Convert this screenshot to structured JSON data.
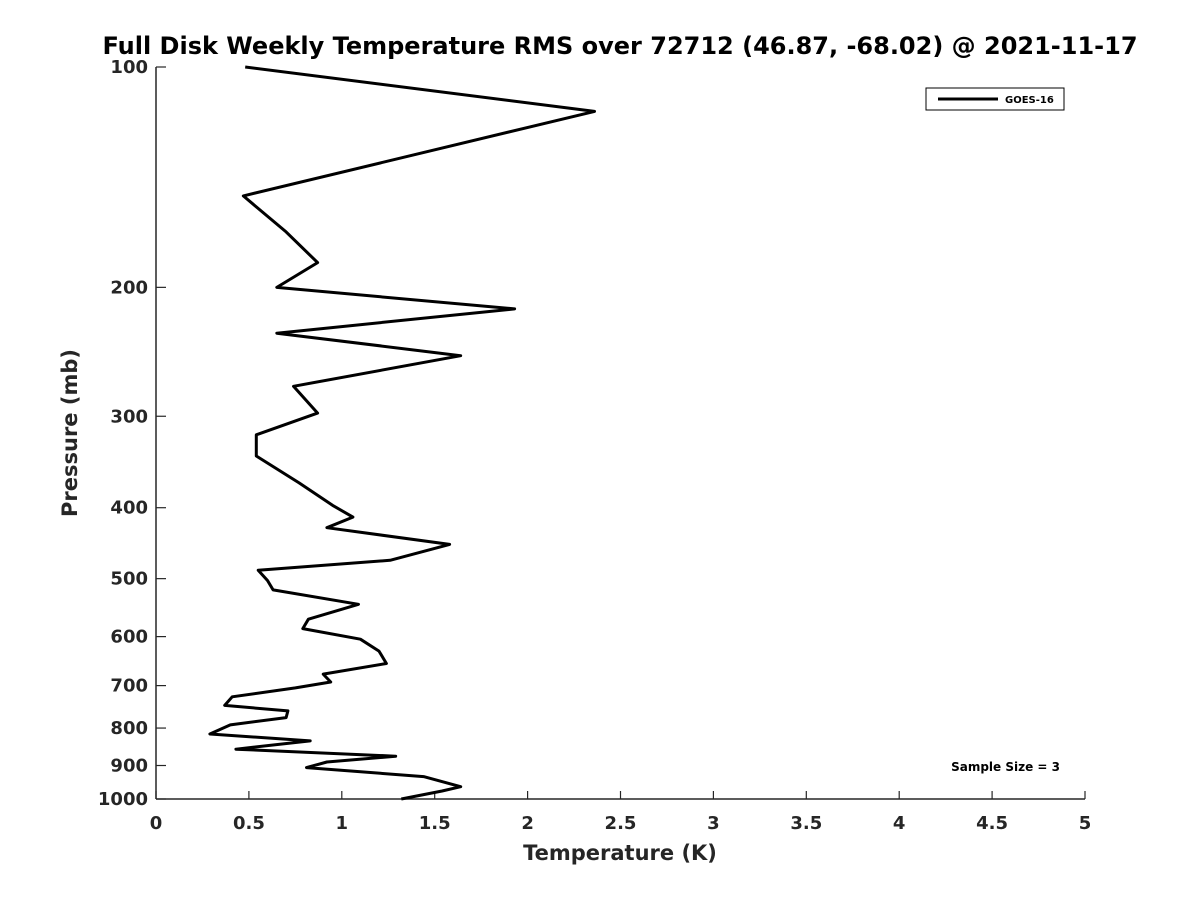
{
  "chart_data": {
    "type": "line",
    "title": "Full Disk Weekly Temperature RMS over 72712 (46.87, -68.02) @ 2021-11-17",
    "xlabel": "Temperature (K)",
    "ylabel": "Pressure (mb)",
    "xlim": [
      0,
      5
    ],
    "ylim": [
      100,
      1000
    ],
    "y_scale": "log",
    "y_reversed": true,
    "x_ticks": [
      "0",
      "0.5",
      "1",
      "1.5",
      "2",
      "2.5",
      "3",
      "3.5",
      "4",
      "4.5",
      "5"
    ],
    "y_ticks": [
      "100",
      "200",
      "300",
      "400",
      "500",
      "600",
      "700",
      "800",
      "900",
      "1000"
    ],
    "grid": false,
    "legend": {
      "position": "top-right",
      "entries": [
        "GOES-16"
      ]
    },
    "annotation": "Sample Size = 3",
    "series": [
      {
        "name": "GOES-16",
        "color": "#000000",
        "points": [
          [
            0.48,
            100
          ],
          [
            2.36,
            115
          ],
          [
            0.47,
            150
          ],
          [
            0.7,
            168
          ],
          [
            0.87,
            185
          ],
          [
            0.65,
            200
          ],
          [
            1.93,
            214
          ],
          [
            0.65,
            231
          ],
          [
            1.64,
            248
          ],
          [
            0.74,
            273
          ],
          [
            0.87,
            297
          ],
          [
            0.54,
            318
          ],
          [
            0.54,
            340
          ],
          [
            0.77,
            370
          ],
          [
            0.95,
            397
          ],
          [
            1.06,
            412
          ],
          [
            0.92,
            426
          ],
          [
            1.58,
            449
          ],
          [
            1.26,
            472
          ],
          [
            0.55,
            487
          ],
          [
            0.6,
            503
          ],
          [
            0.63,
            518
          ],
          [
            1.09,
            542
          ],
          [
            0.82,
            568
          ],
          [
            0.79,
            585
          ],
          [
            1.1,
            605
          ],
          [
            1.2,
            628
          ],
          [
            1.24,
            653
          ],
          [
            0.9,
            675
          ],
          [
            0.94,
            692
          ],
          [
            0.75,
            705
          ],
          [
            0.41,
            725
          ],
          [
            0.37,
            745
          ],
          [
            0.71,
            758
          ],
          [
            0.7,
            774
          ],
          [
            0.4,
            792
          ],
          [
            0.29,
            815
          ],
          [
            0.83,
            833
          ],
          [
            0.43,
            855
          ],
          [
            1.29,
            874
          ],
          [
            0.92,
            890
          ],
          [
            0.81,
            906
          ],
          [
            1.44,
            932
          ],
          [
            1.64,
            962
          ],
          [
            1.54,
            975
          ],
          [
            1.32,
            1000
          ]
        ]
      }
    ]
  }
}
